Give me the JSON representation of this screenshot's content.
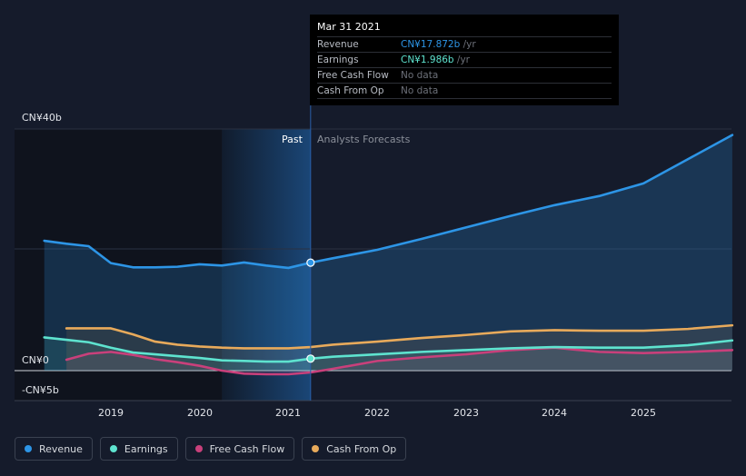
{
  "chart_data": {
    "type": "line",
    "ylim": [
      -5,
      40
    ],
    "y_tick_labels": [
      "CN¥40b",
      "CN¥0",
      "-CN¥5b"
    ],
    "x_tick_labels": [
      "2019",
      "2020",
      "2021",
      "2022",
      "2023",
      "2024",
      "2025"
    ],
    "region_labels": {
      "past": "Past",
      "forecast": "Analysts Forecasts"
    },
    "divider_year": 2021.25,
    "series": [
      {
        "name": "Revenue",
        "color": "#2d95e6",
        "x": [
          2018.25,
          2018.5,
          2018.75,
          2019.0,
          2019.25,
          2019.5,
          2019.75,
          2020.0,
          2020.25,
          2020.5,
          2020.75,
          2021.0,
          2021.25,
          2021.5,
          2022.0,
          2022.5,
          2023.0,
          2023.5,
          2024.0,
          2024.5,
          2025.0,
          2025.5,
          2026.0
        ],
        "y": [
          21.5,
          21.0,
          20.6,
          17.8,
          17.1,
          17.1,
          17.2,
          17.6,
          17.4,
          17.9,
          17.4,
          17.0,
          17.872,
          18.6,
          20.0,
          21.8,
          23.7,
          25.6,
          27.4,
          28.9,
          31.0,
          35.0,
          39.0
        ]
      },
      {
        "name": "Earnings",
        "color": "#5ee3cf",
        "x": [
          2018.25,
          2018.5,
          2018.75,
          2019.0,
          2019.25,
          2019.5,
          2019.75,
          2020.0,
          2020.25,
          2020.5,
          2020.75,
          2021.0,
          2021.25,
          2021.5,
          2022.0,
          2022.5,
          2023.0,
          2023.5,
          2024.0,
          2024.5,
          2025.0,
          2025.5,
          2026.0
        ],
        "y": [
          5.5,
          5.1,
          4.7,
          3.8,
          3.0,
          2.7,
          2.4,
          2.1,
          1.7,
          1.6,
          1.5,
          1.5,
          1.986,
          2.3,
          2.7,
          3.1,
          3.4,
          3.7,
          3.9,
          3.8,
          3.8,
          4.2,
          5.0
        ]
      },
      {
        "name": "Free Cash Flow",
        "color": "#c9407b",
        "x": [
          2018.5,
          2018.75,
          2019.0,
          2019.25,
          2019.5,
          2019.75,
          2020.0,
          2020.25,
          2020.5,
          2020.75,
          2021.0,
          2021.25,
          2021.5,
          2022.0,
          2022.5,
          2023.0,
          2023.5,
          2024.0,
          2024.5,
          2025.0,
          2025.5,
          2026.0
        ],
        "y": [
          1.8,
          2.8,
          3.1,
          2.6,
          1.9,
          1.4,
          0.8,
          0.0,
          -0.5,
          -0.6,
          -0.6,
          -0.3,
          0.3,
          1.6,
          2.2,
          2.7,
          3.4,
          3.8,
          3.1,
          2.9,
          3.1,
          3.4
        ]
      },
      {
        "name": "Cash From Op",
        "color": "#e8aa5b",
        "x": [
          2018.5,
          2018.75,
          2019.0,
          2019.25,
          2019.5,
          2019.75,
          2020.0,
          2020.25,
          2020.5,
          2020.75,
          2021.0,
          2021.25,
          2021.5,
          2022.0,
          2022.5,
          2023.0,
          2023.5,
          2024.0,
          2024.5,
          2025.0,
          2025.5,
          2026.0
        ],
        "y": [
          7.0,
          7.0,
          7.0,
          6.0,
          4.8,
          4.3,
          4.0,
          3.8,
          3.7,
          3.7,
          3.7,
          3.9,
          4.3,
          4.8,
          5.4,
          5.9,
          6.5,
          6.7,
          6.6,
          6.6,
          6.9,
          7.5
        ]
      }
    ],
    "tooltip": {
      "date": "Mar 31 2021",
      "rows": [
        {
          "label": "Revenue",
          "value": "CN¥17.872b",
          "unit": " /yr",
          "color": "#2d95e6"
        },
        {
          "label": "Earnings",
          "value": "CN¥1.986b",
          "unit": " /yr",
          "color": "#5ee3cf"
        },
        {
          "label": "Free Cash Flow",
          "value": "No data",
          "unit": "",
          "color": "#6c7079"
        },
        {
          "label": "Cash From Op",
          "value": "No data",
          "unit": "",
          "color": "#6c7079"
        }
      ]
    }
  },
  "legend": [
    {
      "label": "Revenue",
      "color": "#2d95e6"
    },
    {
      "label": "Earnings",
      "color": "#5ee3cf"
    },
    {
      "label": "Free Cash Flow",
      "color": "#c9407b"
    },
    {
      "label": "Cash From Op",
      "color": "#e8aa5b"
    }
  ]
}
